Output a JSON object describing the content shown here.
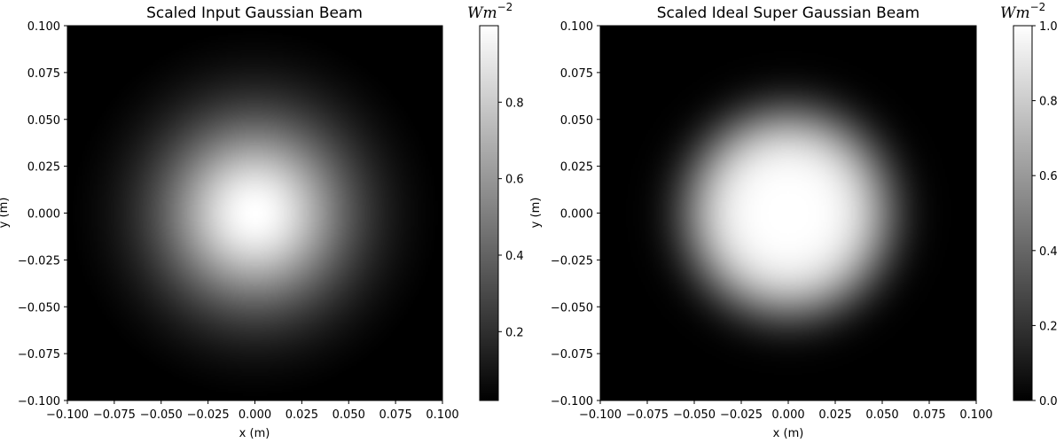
{
  "chart_data": [
    {
      "type": "heatmap",
      "title": "Scaled Input Gaussian Beam",
      "xlabel": "x (m)",
      "ylabel": "y (m)",
      "xlim": [
        -0.1,
        0.1
      ],
      "ylim": [
        -0.1,
        0.1
      ],
      "xticks": [
        "−0.100",
        "−0.075",
        "−0.050",
        "−0.025",
        "0.000",
        "0.025",
        "0.050",
        "0.075",
        "0.100"
      ],
      "yticks": [
        "0.100",
        "0.075",
        "0.050",
        "0.025",
        "0.000",
        "−0.025",
        "−0.050",
        "−0.075",
        "−0.100"
      ],
      "colormap": "gray",
      "beam": {
        "profile": "gaussian",
        "center": [
          0.0,
          0.0
        ],
        "width": 0.05,
        "order": 1
      },
      "colorbar": {
        "unit": "Wm",
        "unit_exp": "−2",
        "range": [
          0.02,
          1.0
        ],
        "ticks": [
          {
            "value": 0.2,
            "label": "0.2"
          },
          {
            "value": 0.4,
            "label": "0.4"
          },
          {
            "value": 0.6,
            "label": "0.6"
          },
          {
            "value": 0.8,
            "label": "0.8"
          }
        ]
      }
    },
    {
      "type": "heatmap",
      "title": "Scaled Ideal Super Gaussian Beam",
      "xlabel": "x (m)",
      "ylabel": "y (m)",
      "xlim": [
        -0.1,
        0.1
      ],
      "ylim": [
        -0.1,
        0.1
      ],
      "xticks": [
        "−0.100",
        "−0.075",
        "−0.050",
        "−0.025",
        "0.000",
        "0.025",
        "0.050",
        "0.075",
        "0.100"
      ],
      "yticks": [
        "0.100",
        "0.075",
        "0.050",
        "0.025",
        "0.000",
        "−0.025",
        "−0.050",
        "−0.075",
        "−0.100"
      ],
      "colormap": "gray",
      "beam": {
        "profile": "super-gaussian",
        "center": [
          0.0,
          0.0
        ],
        "width": 0.055,
        "order": 2
      },
      "colorbar": {
        "unit": "Wm",
        "unit_exp": "−2",
        "range": [
          0.0,
          1.0
        ],
        "ticks": [
          {
            "value": 0.0,
            "label": "0.0"
          },
          {
            "value": 0.2,
            "label": "0.2"
          },
          {
            "value": 0.4,
            "label": "0.4"
          },
          {
            "value": 0.6,
            "label": "0.6"
          },
          {
            "value": 0.8,
            "label": "0.8"
          },
          {
            "value": 1.0,
            "label": "1.0"
          }
        ]
      }
    }
  ]
}
